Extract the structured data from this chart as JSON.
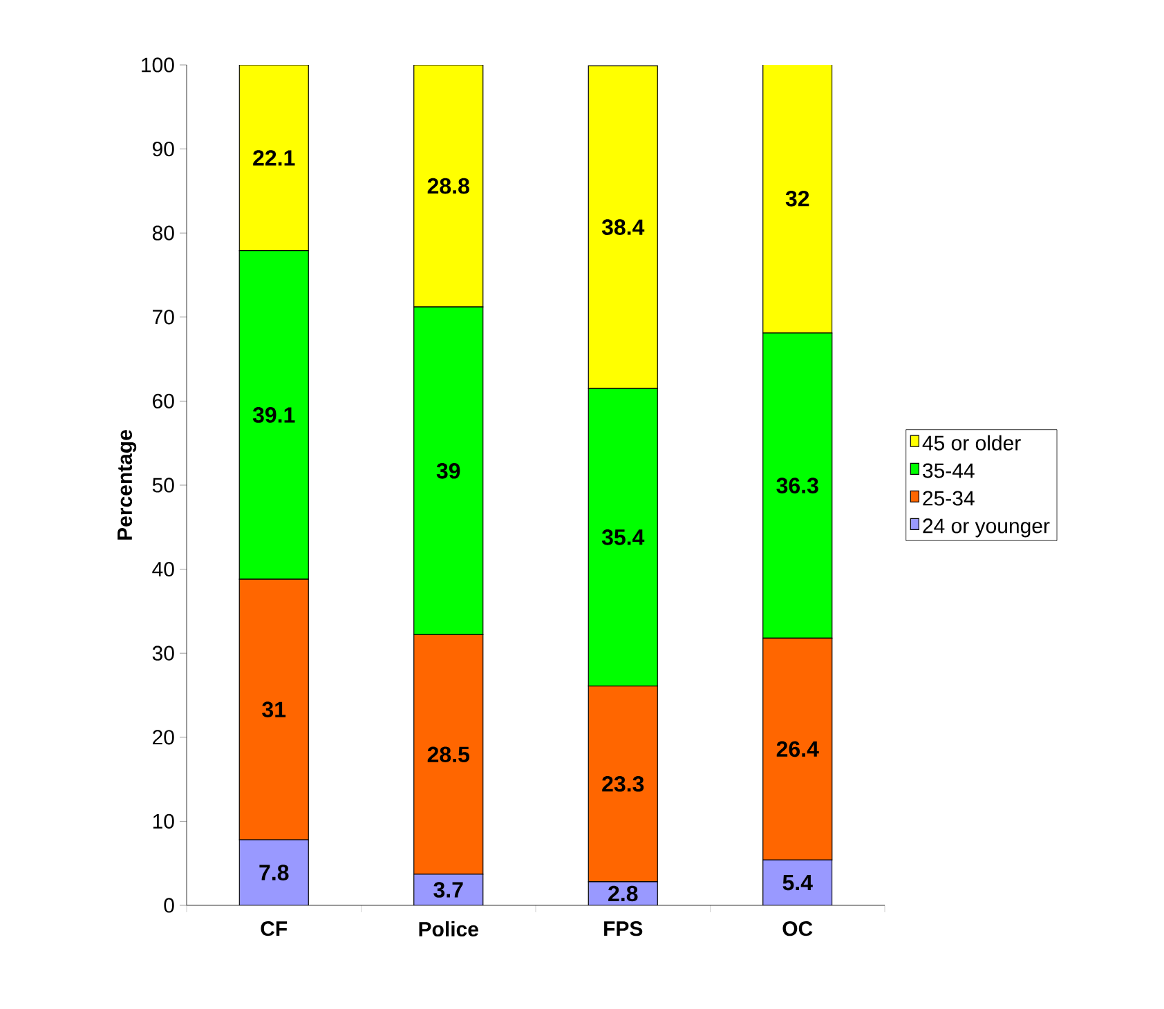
{
  "chart_data": {
    "type": "bar",
    "stacked": true,
    "ylabel": "Percentage",
    "categories": [
      "CF",
      "Police",
      "FPS",
      "OC"
    ],
    "series": [
      {
        "name": "24 or younger",
        "color": "#9999ff",
        "values": [
          7.8,
          3.7,
          2.8,
          5.4
        ]
      },
      {
        "name": "25-34",
        "color": "#ff6600",
        "values": [
          31,
          28.5,
          23.3,
          26.4
        ]
      },
      {
        "name": "35-44",
        "color": "#00ff00",
        "values": [
          39.1,
          39,
          35.4,
          36.3
        ]
      },
      {
        "name": "45 or older",
        "color": "#ffff00",
        "values": [
          22.1,
          28.8,
          38.4,
          32
        ]
      }
    ],
    "ylim": [
      0,
      100
    ],
    "yticks": [
      0,
      10,
      20,
      30,
      40,
      50,
      60,
      70,
      80,
      90,
      100
    ],
    "data_labels": true,
    "legend": "right",
    "grid": false
  }
}
